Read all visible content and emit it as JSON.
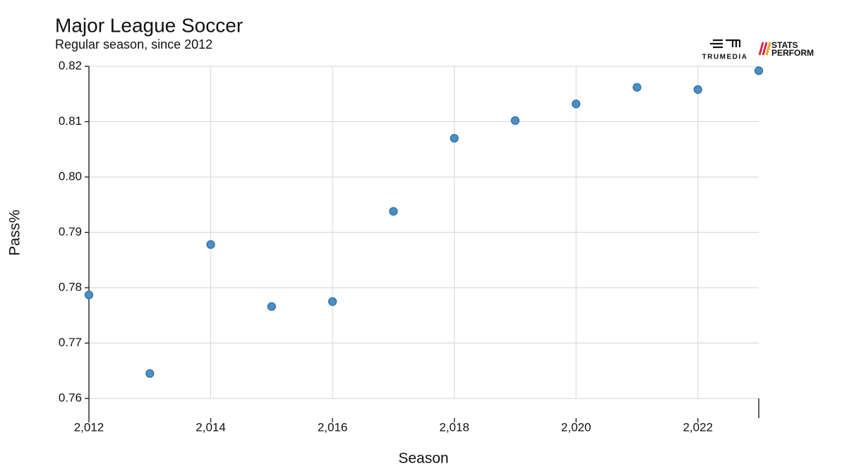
{
  "chart_data": {
    "type": "scatter",
    "title": "Major League Soccer",
    "subtitle": "Regular season, since 2012",
    "x_label": "Season",
    "y_label": "Pass%",
    "x": [
      2012,
      2013,
      2014,
      2015,
      2016,
      2017,
      2018,
      2019,
      2020,
      2021,
      2022,
      2023
    ],
    "values": [
      0.7787,
      0.7645,
      0.7878,
      0.7766,
      0.7775,
      0.7938,
      0.807,
      0.8102,
      0.8132,
      0.8162,
      0.8158,
      0.8192
    ],
    "color": "#4a8fc7",
    "xlim": [
      2012,
      2023
    ],
    "xticks": [
      {
        "value": 2012,
        "label": "2,012"
      },
      {
        "value": 2014,
        "label": "2,014"
      },
      {
        "value": 2016,
        "label": "2,016"
      },
      {
        "value": 2018,
        "label": "2,018"
      },
      {
        "value": 2020,
        "label": "2,020"
      },
      {
        "value": 2022,
        "label": "2,022"
      }
    ],
    "ylim": [
      0.76,
      0.82
    ],
    "yticks": [
      0.76,
      0.77,
      0.78,
      0.79,
      {
        "value": 0.8,
        "label": "0.80"
      },
      0.81,
      0.82
    ],
    "grid": true
  },
  "logos": {
    "trumedia": "TRUMEDIA",
    "stats": "STATS",
    "perform": "PERFORM"
  }
}
